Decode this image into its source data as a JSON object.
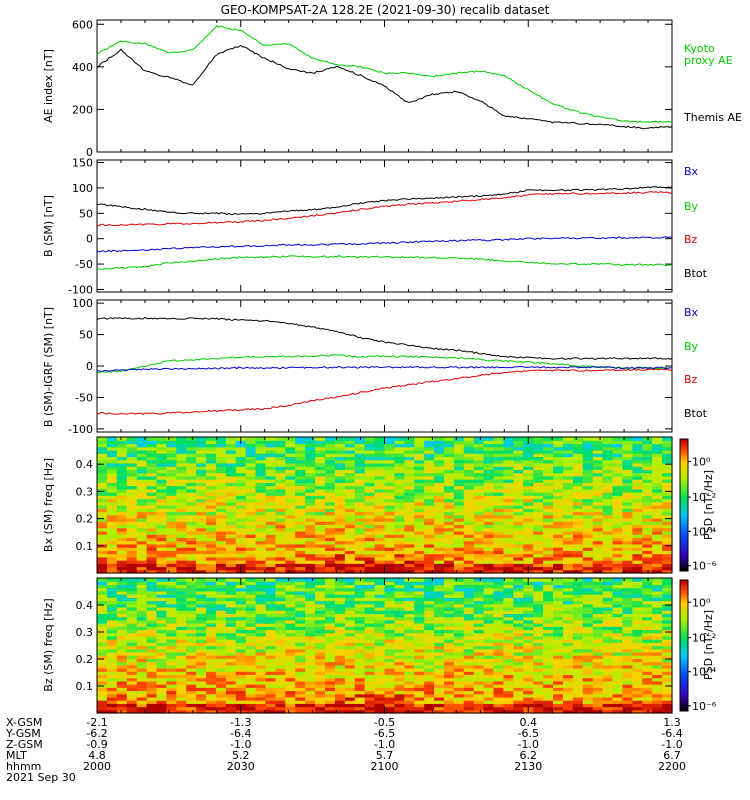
{
  "title": "GEO-KOMPSAT-2A 128.2E (2021-09-30) recalib dataset",
  "chart_data": [
    {
      "type": "line",
      "ylabel": "AE index [nT]",
      "ylim": [
        0,
        620
      ],
      "yticks": [
        0,
        200,
        400,
        600
      ],
      "x": [
        0,
        5,
        10,
        15,
        20,
        25,
        30,
        35,
        40,
        45,
        50,
        55,
        60,
        65,
        70,
        75,
        80,
        85,
        90,
        95,
        100,
        105,
        110,
        115,
        120
      ],
      "series": [
        {
          "name": "Kyoto proxy AE",
          "color": "#00cc00",
          "values": [
            460,
            520,
            510,
            465,
            480,
            590,
            570,
            500,
            510,
            440,
            410,
            400,
            370,
            370,
            355,
            370,
            380,
            360,
            290,
            230,
            190,
            165,
            145,
            140,
            145
          ]
        },
        {
          "name": "Themis AE",
          "color": "#000000",
          "values": [
            400,
            480,
            380,
            350,
            315,
            460,
            500,
            440,
            390,
            370,
            400,
            360,
            310,
            230,
            270,
            285,
            240,
            170,
            155,
            140,
            135,
            130,
            120,
            110,
            120
          ]
        }
      ]
    },
    {
      "type": "line",
      "ylabel": "B (SM) [nT]",
      "ylim": [
        -105,
        155
      ],
      "yticks": [
        -100,
        -50,
        0,
        50,
        100,
        150
      ],
      "x": [
        0,
        5,
        10,
        15,
        20,
        25,
        30,
        35,
        40,
        45,
        50,
        55,
        60,
        65,
        70,
        75,
        80,
        85,
        90,
        95,
        100,
        105,
        110,
        115,
        120
      ],
      "series": [
        {
          "name": "Btot",
          "color": "#000000",
          "values": [
            68,
            63,
            58,
            52,
            50,
            50,
            48,
            50,
            55,
            57,
            62,
            70,
            75,
            78,
            80,
            82,
            84,
            88,
            95,
            96,
            96,
            97,
            98,
            101,
            102
          ]
        },
        {
          "name": "Bz",
          "color": "#dd0000",
          "values": [
            27,
            27,
            28,
            29,
            30,
            32,
            33,
            36,
            40,
            45,
            50,
            58,
            64,
            68,
            70,
            74,
            77,
            81,
            86,
            88,
            89,
            89,
            90,
            91,
            91
          ]
        },
        {
          "name": "By",
          "color": "#0000cc",
          "values": [
            -25,
            -24,
            -22,
            -20,
            -17,
            -16,
            -15,
            -14,
            -12,
            -12,
            -11,
            -10,
            -9,
            -7,
            -5,
            -4,
            -3,
            -2,
            0,
            1,
            1,
            1,
            2,
            2,
            3
          ]
        },
        {
          "name": "Bx",
          "color": "#00cc00",
          "values": [
            -60,
            -58,
            -55,
            -48,
            -44,
            -40,
            -37,
            -36,
            -35,
            -35,
            -35,
            -36,
            -36,
            -37,
            -37,
            -38,
            -40,
            -44,
            -47,
            -49,
            -50,
            -50,
            -51,
            -51,
            -52
          ]
        }
      ]
    },
    {
      "type": "line",
      "ylabel": "B (SM)-IGRF (SM) [nT]",
      "ylim": [
        -105,
        105
      ],
      "yticks": [
        -100,
        -50,
        0,
        50,
        100
      ],
      "x": [
        0,
        5,
        10,
        15,
        20,
        25,
        30,
        35,
        40,
        45,
        50,
        55,
        60,
        65,
        70,
        75,
        80,
        85,
        90,
        95,
        100,
        105,
        110,
        115,
        120
      ],
      "series": [
        {
          "name": "Btot",
          "color": "#000000",
          "values": [
            75,
            76,
            76,
            75,
            76,
            75,
            73,
            72,
            68,
            62,
            55,
            45,
            38,
            33,
            28,
            25,
            20,
            15,
            13,
            12,
            12,
            12,
            12,
            12,
            12
          ]
        },
        {
          "name": "Bz",
          "color": "#dd0000",
          "values": [
            -75,
            -76,
            -76,
            -75,
            -73,
            -71,
            -70,
            -68,
            -63,
            -55,
            -50,
            -42,
            -35,
            -30,
            -25,
            -20,
            -15,
            -10,
            -8,
            -7,
            -7,
            -7,
            -6,
            -6,
            -6
          ]
        },
        {
          "name": "By",
          "color": "#00cc00",
          "values": [
            -10,
            -8,
            0,
            8,
            10,
            12,
            14,
            15,
            15,
            16,
            17,
            15,
            15,
            15,
            14,
            13,
            10,
            8,
            6,
            4,
            0,
            -2,
            -3,
            -3,
            -3
          ]
        },
        {
          "name": "Bx",
          "color": "#0000cc",
          "values": [
            -8,
            -7,
            -5,
            -5,
            -4,
            -4,
            -3,
            -3,
            -3,
            -2,
            -2,
            -2,
            -2,
            -2,
            -2,
            -2,
            -2,
            -2,
            -2,
            -2,
            -2,
            -2,
            -3,
            -3,
            -3
          ]
        }
      ]
    },
    {
      "type": "heatmap",
      "ylabel": "Bx (SM) freq [Hz]",
      "yticks": [
        "0.1",
        "0.2",
        "0.3",
        "0.4"
      ],
      "colorbar_label": "PSD [nT²/Hz]",
      "colorbar_ticks": [
        "10⁰",
        "10⁻²",
        "10⁻⁴",
        "10⁻⁶"
      ]
    },
    {
      "type": "heatmap",
      "ylabel": "Bz (SM) freq [Hz]",
      "yticks": [
        "0.1",
        "0.2",
        "0.3",
        "0.4"
      ],
      "colorbar_label": "PSD [nT²/Hz]",
      "colorbar_ticks": [
        "10⁰",
        "10⁻²",
        "10⁻⁴",
        "10⁻⁶"
      ]
    }
  ],
  "legend": {
    "ae": [
      "Kyoto proxy AE",
      "Themis AE"
    ],
    "bsm": [
      "Bx",
      "By",
      "Bz",
      "Btot"
    ],
    "bigrf": [
      "Bx",
      "By",
      "Bz",
      "Btot"
    ]
  },
  "orbit_table": {
    "row_labels": [
      "X-GSM",
      "Y-GSM",
      "Z-GSM",
      "MLT",
      "hhmm",
      "2021 Sep 30"
    ],
    "columns": [
      {
        "values": [
          "-2.1",
          "-6.2",
          "-0.9",
          "4.8",
          "2000"
        ]
      },
      {
        "values": [
          "-1.3",
          "-6.4",
          "-1.0",
          "5.2",
          "2030"
        ]
      },
      {
        "values": [
          "-0.5",
          "-6.5",
          "-1.0",
          "5.7",
          "2100"
        ]
      },
      {
        "values": [
          "0.4",
          "-6.5",
          "-1.0",
          "6.2",
          "2130"
        ]
      },
      {
        "values": [
          "1.3",
          "-6.4",
          "-1.0",
          "6.7",
          "2200"
        ]
      }
    ]
  }
}
